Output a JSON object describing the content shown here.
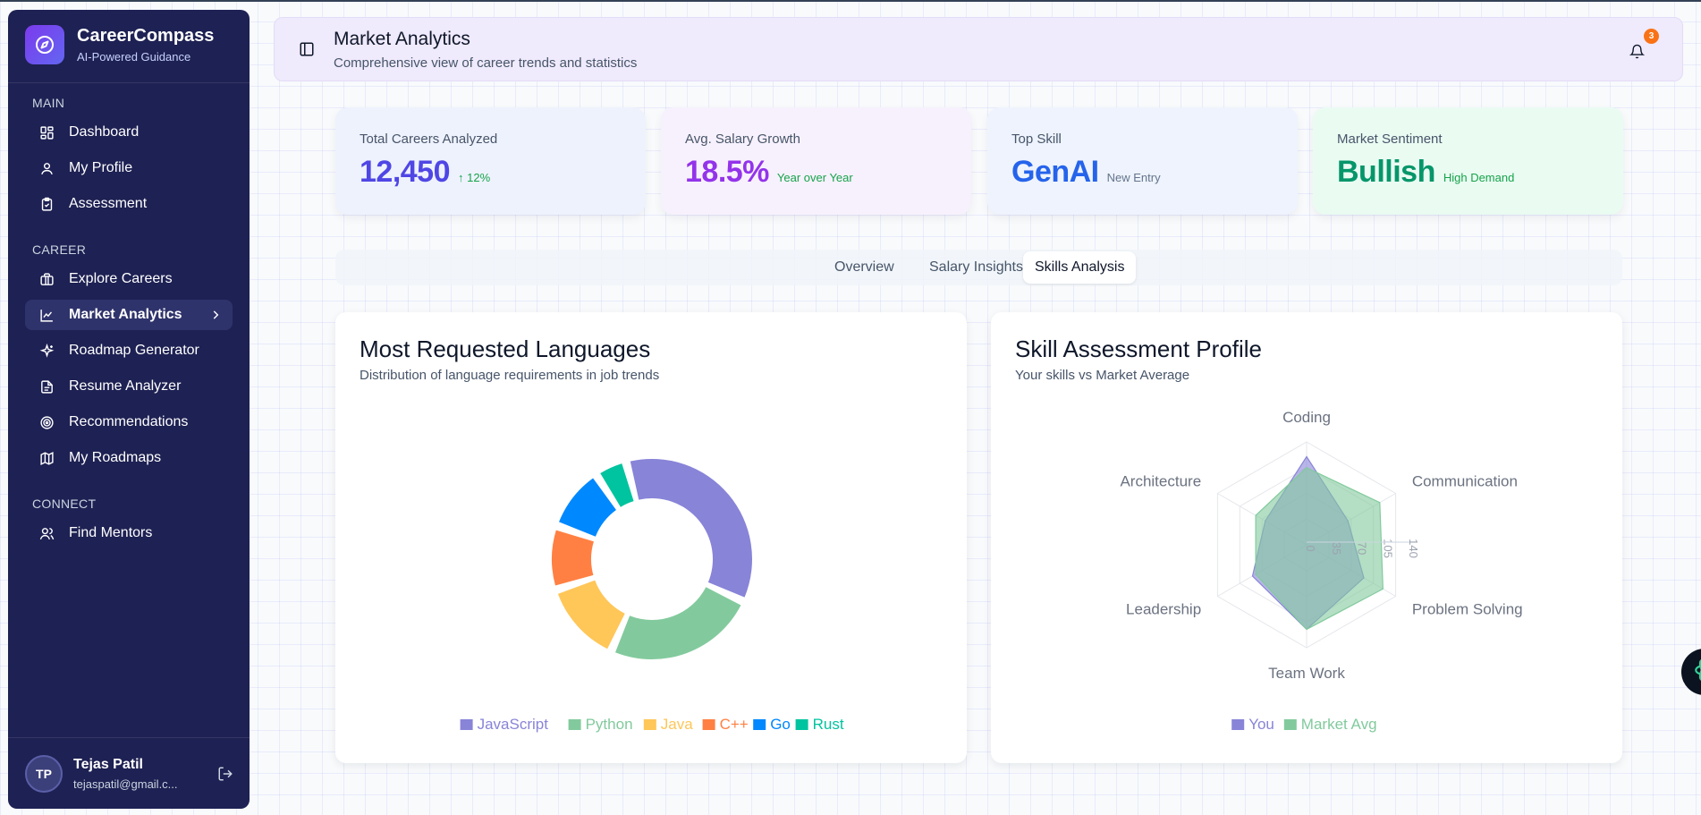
{
  "brand": {
    "name": "CareerCompass",
    "tagline": "AI-Powered Guidance"
  },
  "sidebar": {
    "sections": [
      {
        "label": "MAIN",
        "items": [
          {
            "label": "Dashboard",
            "icon": "dashboard-icon"
          },
          {
            "label": "My Profile",
            "icon": "user-icon"
          },
          {
            "label": "Assessment",
            "icon": "clipboard-icon"
          }
        ]
      },
      {
        "label": "CAREER",
        "items": [
          {
            "label": "Explore Careers",
            "icon": "briefcase-icon"
          },
          {
            "label": "Market Analytics",
            "icon": "line-chart-icon",
            "active": true
          },
          {
            "label": "Roadmap Generator",
            "icon": "sparkles-icon"
          },
          {
            "label": "Resume Analyzer",
            "icon": "document-icon"
          },
          {
            "label": "Recommendations",
            "icon": "target-icon"
          },
          {
            "label": "My Roadmaps",
            "icon": "map-icon"
          }
        ]
      },
      {
        "label": "CONNECT",
        "items": [
          {
            "label": "Find Mentors",
            "icon": "users-icon"
          }
        ]
      }
    ]
  },
  "user": {
    "initials": "TP",
    "name": "Tejas Patil",
    "email": "tejaspatil@gmail.c..."
  },
  "header": {
    "title": "Market Analytics",
    "subtitle": "Comprehensive view of career trends and statistics",
    "notification_count": "3"
  },
  "stats": [
    {
      "label": "Total Careers Analyzed",
      "value": "12,450",
      "note": "↑ 12%",
      "value_color": "#4f46e5",
      "note_color": "#16a34a",
      "bg": "#eef2fd"
    },
    {
      "label": "Avg. Salary Growth",
      "value": "18.5%",
      "note": "Year over Year",
      "value_color": "#9333ea",
      "note_color": "#16a34a",
      "bg": "#f7f1fd"
    },
    {
      "label": "Top Skill",
      "value": "GenAI",
      "note": "New Entry",
      "value_color": "#2563eb",
      "note_color": "#64748b",
      "bg": "#eef3fd"
    },
    {
      "label": "Market Sentiment",
      "value": "Bullish",
      "note": "High Demand",
      "value_color": "#059669",
      "note_color": "#16a34a",
      "bg": "#eafbf2"
    }
  ],
  "tabs": [
    {
      "label": "Overview"
    },
    {
      "label": "Salary Insights"
    },
    {
      "label": "Skills Analysis",
      "active": true
    }
  ],
  "panels": {
    "languages": {
      "title": "Most Requested Languages",
      "subtitle": "Distribution of language requirements in job trends"
    },
    "skills": {
      "title": "Skill Assessment Profile",
      "subtitle": "Your skills vs Market Average"
    }
  },
  "chart_data": [
    {
      "type": "pie",
      "title": "Most Requested Languages",
      "categories": [
        "JavaScript",
        "Python",
        "Java",
        "C++",
        "Go",
        "Rust"
      ],
      "values": [
        35,
        24,
        13,
        10,
        10,
        5
      ],
      "colors": [
        "#8884d8",
        "#82ca9d",
        "#ffc658",
        "#ff8042",
        "#0088fe",
        "#00c49f"
      ],
      "legend": "bottom"
    },
    {
      "type": "radar",
      "title": "Skill Assessment Profile",
      "axes": [
        "Coding",
        "Communication",
        "Problem Solving",
        "Team Work",
        "Leadership",
        "Architecture"
      ],
      "radial_ticks": [
        "0",
        "35",
        "70",
        "105",
        "140"
      ],
      "ylim": [
        0,
        140
      ],
      "series": [
        {
          "name": "You",
          "values": [
            120,
            65,
            90,
            115,
            85,
            65
          ],
          "color": "#8884d8"
        },
        {
          "name": "Market Avg",
          "values": [
            105,
            115,
            120,
            115,
            80,
            80
          ],
          "color": "#82ca9d"
        }
      ],
      "legend": "bottom"
    }
  ]
}
